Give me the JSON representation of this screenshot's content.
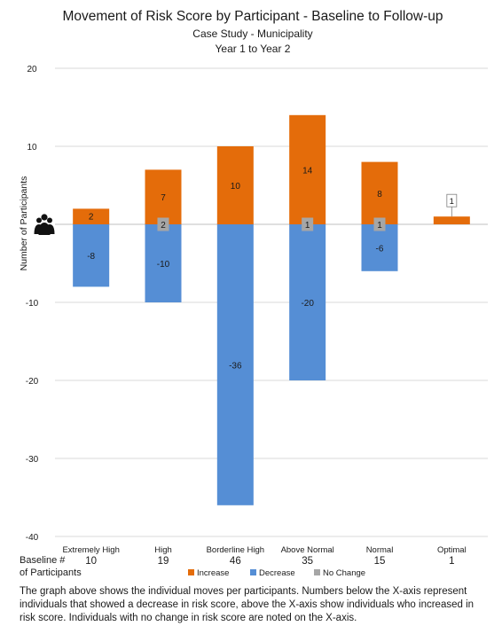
{
  "chart_data": {
    "type": "bar",
    "title": "Movement of Risk Score by Participant - Baseline to Follow-up",
    "subtitle": "Case Study - Municipality",
    "subtitle2": "Year 1 to Year 2",
    "ylabel": "Number of Participants",
    "ylim": [
      -40,
      20
    ],
    "yticks": [
      -40,
      -30,
      -20,
      -10,
      0,
      10,
      20
    ],
    "ytick_labels": [
      "-40",
      "-30",
      "-20",
      "-10",
      "0",
      "10",
      "20"
    ],
    "grid": true,
    "categories": [
      "Extremely High",
      "High",
      "Borderline High",
      "Above Normal",
      "Normal",
      "Optimal"
    ],
    "series": [
      {
        "name": "Increase",
        "color": "#e46c0a",
        "values": [
          2,
          7,
          10,
          14,
          8,
          1
        ],
        "labels": [
          "2",
          "7",
          "10",
          "14",
          "8",
          "1"
        ]
      },
      {
        "name": "Decrease",
        "color": "#558ed5",
        "values": [
          -8,
          -10,
          -36,
          -20,
          -6,
          0
        ],
        "labels": [
          "-8",
          "-10",
          "-36",
          "-20",
          "-6",
          ""
        ]
      },
      {
        "name": "No Change",
        "color": "#a6a6a6",
        "values": [
          0,
          2,
          0,
          1,
          1,
          0
        ],
        "labels": [
          "",
          "2",
          "",
          "1",
          "1",
          ""
        ]
      }
    ],
    "legend_position": "bottom",
    "baseline_label_line1": "Baseline #",
    "baseline_label_line2": "of Participants",
    "baseline_counts": [
      "10",
      "19",
      "46",
      "35",
      "15",
      "1"
    ],
    "icon": "people-icon"
  },
  "caption": "The graph above shows the individual moves per participants.  Numbers below the X-axis represent individuals that showed a decrease in risk score, above the X-axis show individuals who increased in risk score.  Individuals with no change in risk score are noted on the X-axis."
}
